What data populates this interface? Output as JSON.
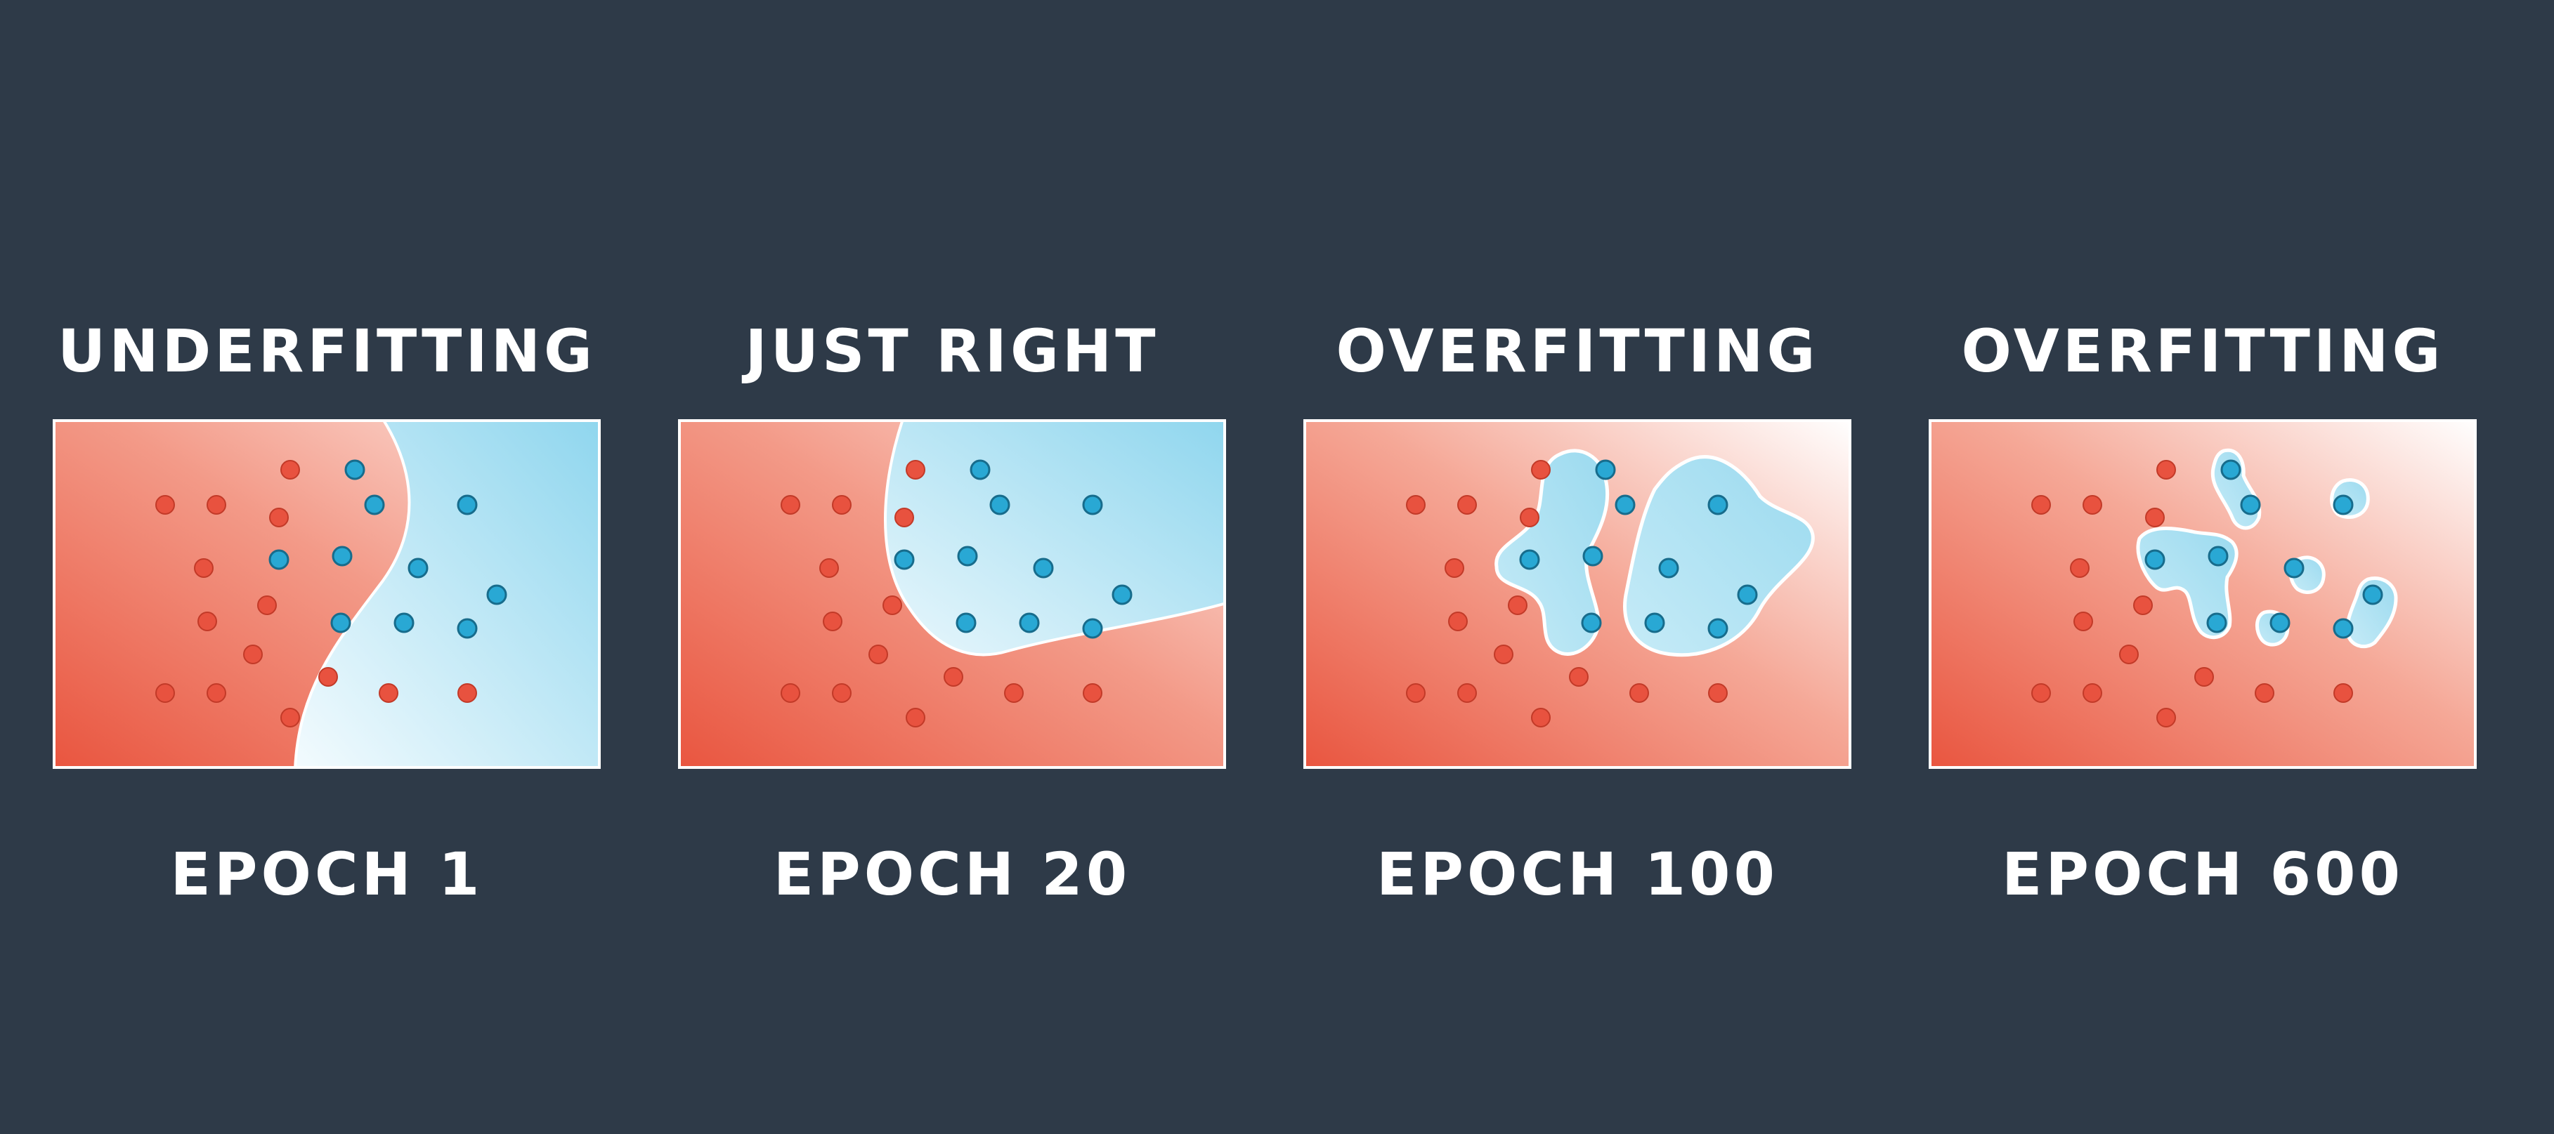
{
  "colors": {
    "background": "#2e3a48",
    "red_class": "#e8523f",
    "blue_class": "#29a8d4",
    "red_region": "#ee6a55",
    "blue_region": "#9fdcef",
    "text": "#ffffff"
  },
  "panels": [
    {
      "title": "UNDERFITTING",
      "epoch": "EPOCH 1"
    },
    {
      "title": "JUST RIGHT",
      "epoch": "EPOCH 20"
    },
    {
      "title": "OVERFITTING",
      "epoch": "EPOCH 100"
    },
    {
      "title": "OVERFITTING",
      "epoch": "EPOCH 600"
    }
  ]
}
